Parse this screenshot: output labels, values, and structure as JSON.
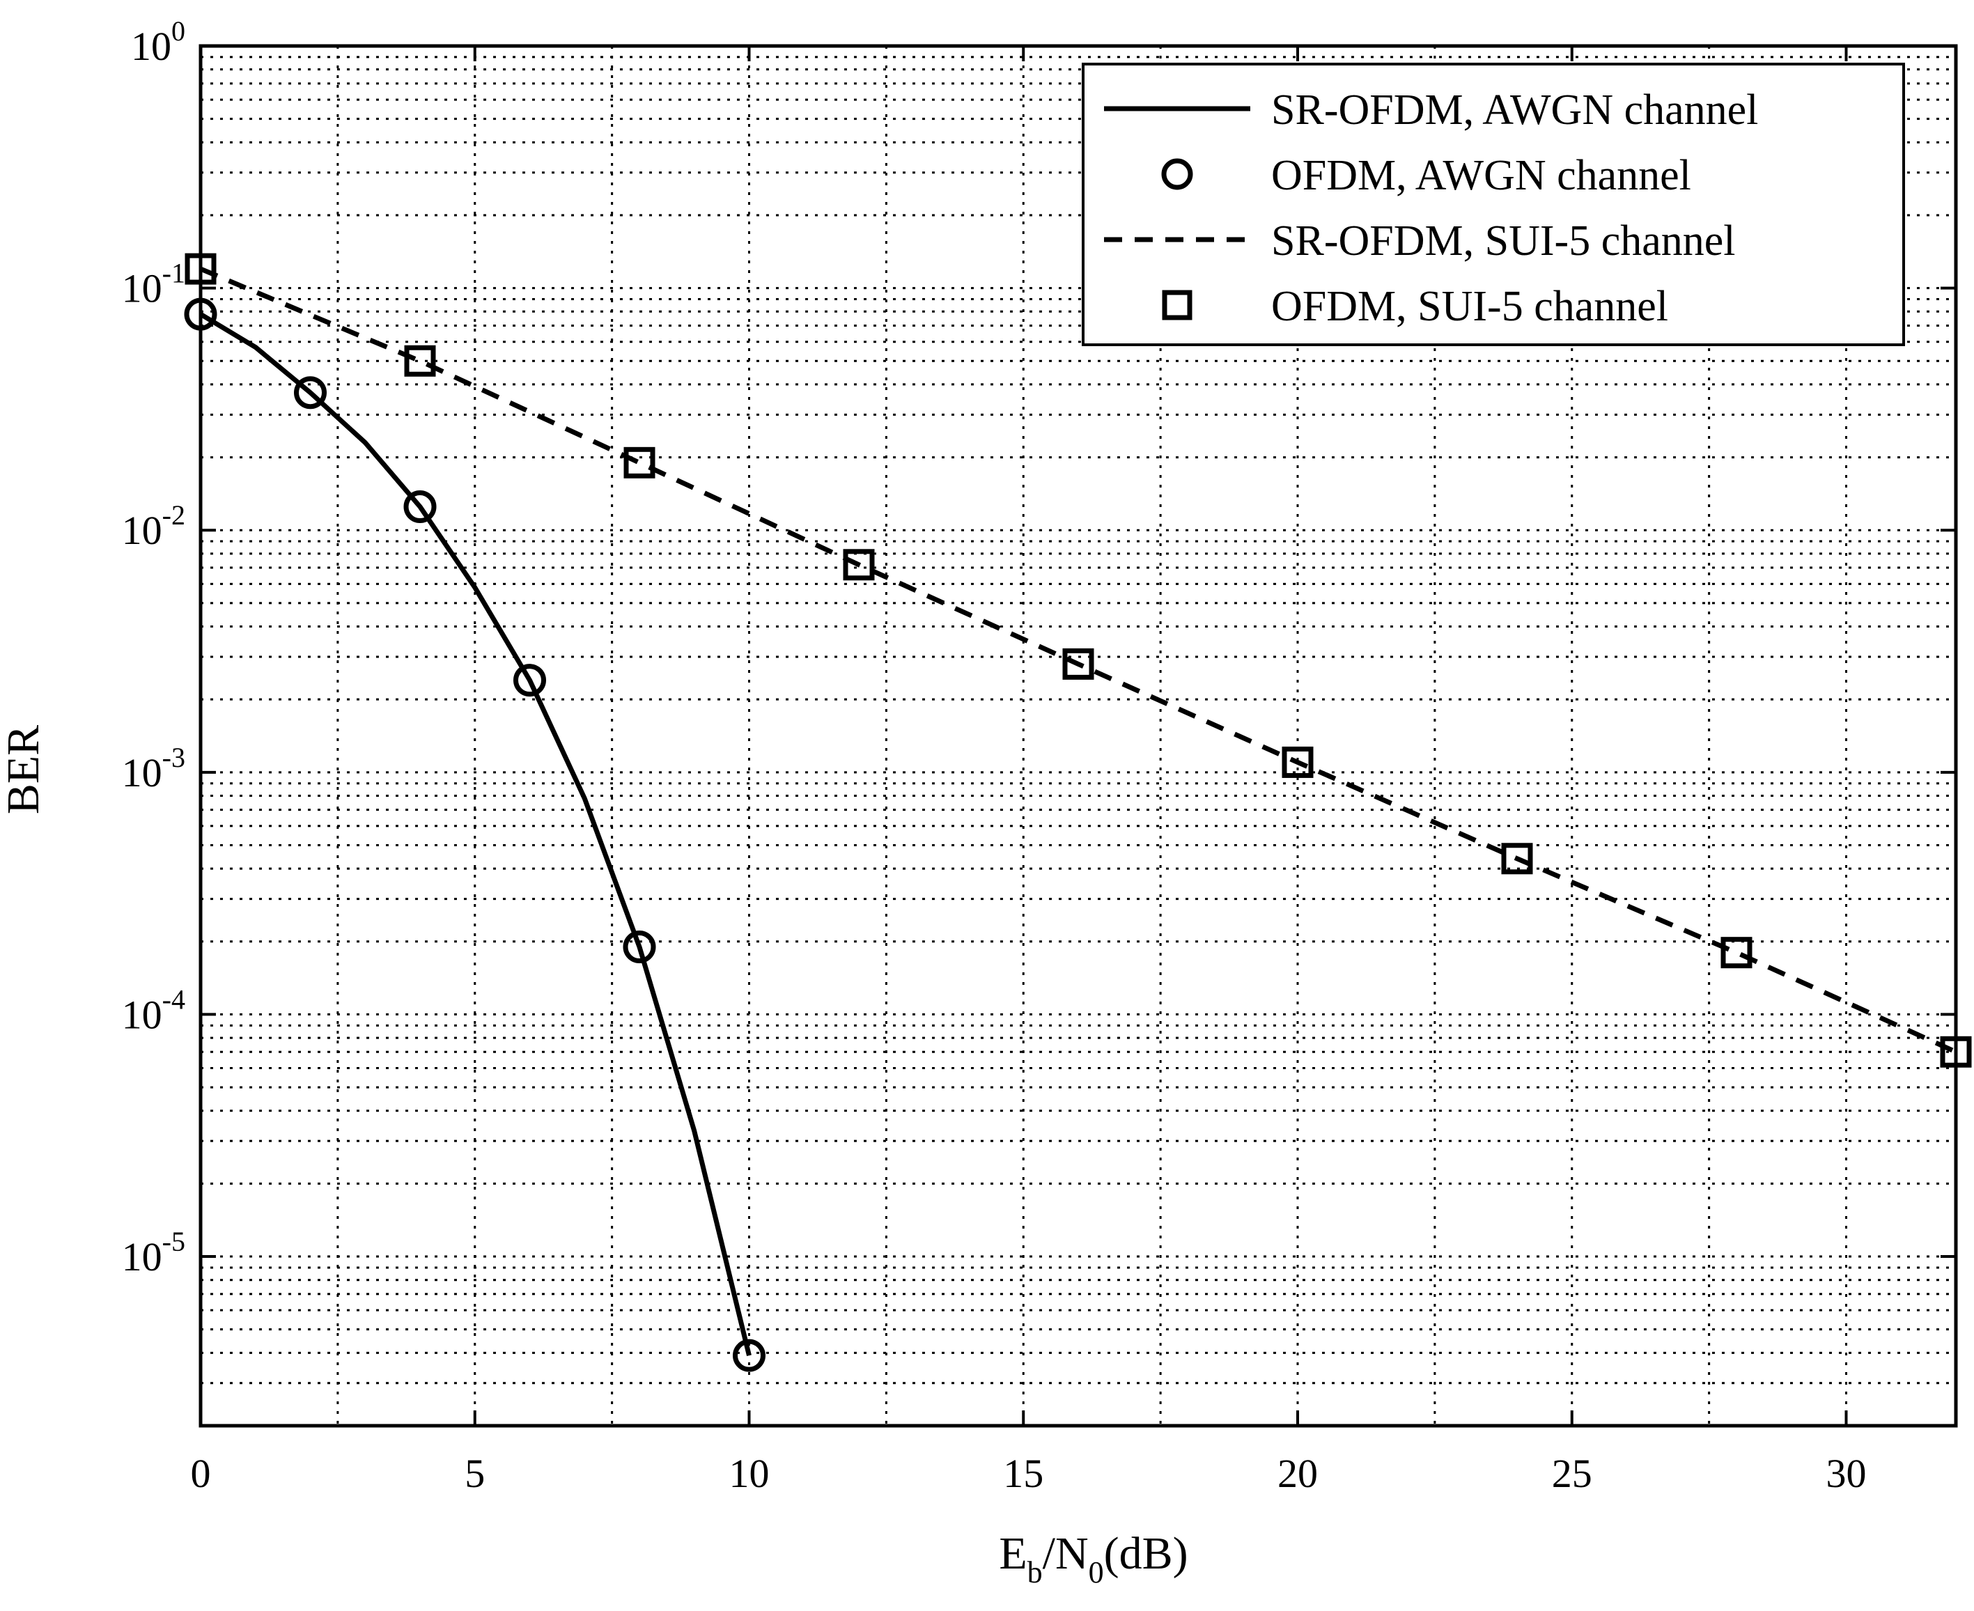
{
  "chart_data": {
    "type": "line",
    "xlabel": {
      "base": "E",
      "sub1": "b",
      "mid": "/N",
      "sub2": "0",
      "tail": "(dB)"
    },
    "ylabel": "BER",
    "xlim": [
      0,
      32
    ],
    "ylim": [
      2e-06,
      1
    ],
    "y_scale": "log",
    "grid": true,
    "legend_position": "top-right",
    "x_ticks": [
      0,
      5,
      10,
      15,
      20,
      25,
      30
    ],
    "y_ticks": [
      {
        "value": 1,
        "base": "10",
        "exp": "0"
      },
      {
        "value": 0.1,
        "base": "10",
        "exp": "-1"
      },
      {
        "value": 0.01,
        "base": "10",
        "exp": "-2"
      },
      {
        "value": 0.001,
        "base": "10",
        "exp": "-3"
      },
      {
        "value": 0.0001,
        "base": "10",
        "exp": "-4"
      },
      {
        "value": 1e-05,
        "base": "10",
        "exp": "-5"
      }
    ],
    "series": [
      {
        "name": "SR-OFDM, AWGN channel",
        "style": "solid",
        "marker": "none",
        "color": "#000000",
        "x": [
          0,
          1,
          2,
          3,
          4,
          5,
          6,
          7,
          8,
          9,
          10
        ],
        "y": [
          0.078,
          0.057,
          0.037,
          0.023,
          0.0125,
          0.0058,
          0.0024,
          0.00078,
          0.00019,
          3.3e-05,
          3.9e-06
        ]
      },
      {
        "name": "OFDM,  AWGN channel",
        "style": "none",
        "marker": "circle",
        "color": "#000000",
        "x": [
          0,
          2,
          4,
          6,
          8,
          10
        ],
        "y": [
          0.078,
          0.037,
          0.0125,
          0.0024,
          0.00019,
          3.9e-06
        ]
      },
      {
        "name": "SR-OFDM, SUI-5 channel",
        "style": "dashed",
        "marker": "none",
        "color": "#000000",
        "x": [
          0,
          4,
          8,
          12,
          16,
          20,
          24,
          28,
          32
        ],
        "y": [
          0.12,
          0.05,
          0.019,
          0.0072,
          0.0028,
          0.0011,
          0.00044,
          0.00018,
          7e-05
        ]
      },
      {
        "name": "OFDM, SUI-5 channel",
        "style": "none",
        "marker": "square",
        "color": "#000000",
        "x": [
          0,
          4,
          8,
          12,
          16,
          20,
          24,
          28,
          32
        ],
        "y": [
          0.12,
          0.05,
          0.019,
          0.0072,
          0.0028,
          0.0011,
          0.00044,
          0.00018,
          7e-05
        ]
      }
    ]
  }
}
